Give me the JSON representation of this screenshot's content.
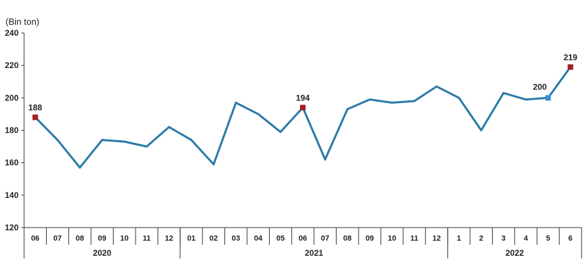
{
  "chart_data": {
    "type": "line",
    "ylabel": "(Bin ton)",
    "ylim": [
      120,
      240
    ],
    "yticks": [
      120,
      140,
      160,
      180,
      200,
      220,
      240
    ],
    "grid": false,
    "categories": [
      "06",
      "07",
      "08",
      "09",
      "10",
      "11",
      "12",
      "01",
      "02",
      "03",
      "04",
      "05",
      "06",
      "07",
      "08",
      "09",
      "10",
      "11",
      "12",
      "1",
      "2",
      "3",
      "4",
      "5",
      "6"
    ],
    "year_groups": [
      {
        "label": "2020",
        "start": 0,
        "end": 6
      },
      {
        "label": "2021",
        "start": 7,
        "end": 18
      },
      {
        "label": "2022",
        "start": 19,
        "end": 24
      }
    ],
    "series": [
      {
        "values": [
          188,
          174,
          157,
          174,
          173,
          170,
          182,
          174,
          159,
          197,
          190,
          179,
          194,
          162,
          193,
          199,
          197,
          198,
          207,
          200,
          180,
          203,
          199,
          200,
          219
        ],
        "color": "#2a7aa8"
      }
    ],
    "data_labels": [
      {
        "index": 0,
        "text": "188",
        "marker_color": "#a31f24"
      },
      {
        "index": 12,
        "text": "194",
        "marker_color": "#a31f24"
      },
      {
        "index": 23,
        "text": "200",
        "marker_color": "#3a8fd0"
      },
      {
        "index": 24,
        "text": "219",
        "marker_color": "#a31f24"
      }
    ]
  }
}
